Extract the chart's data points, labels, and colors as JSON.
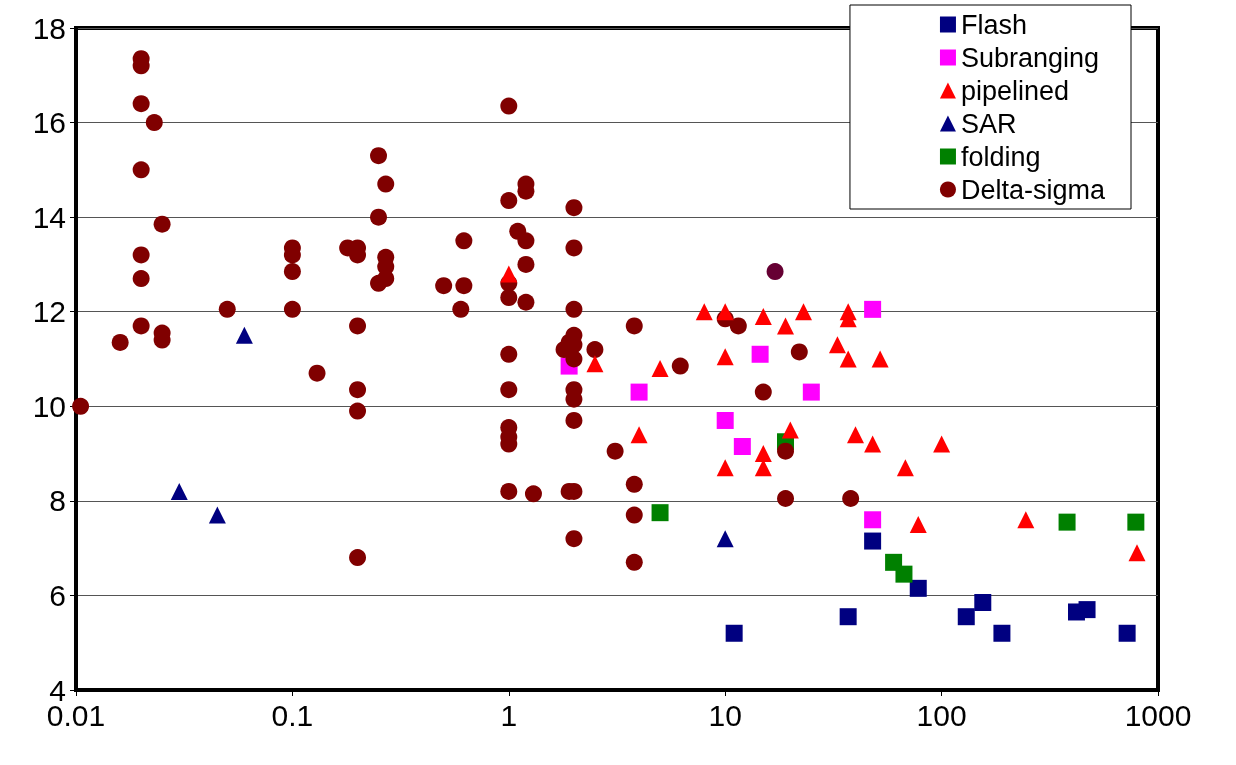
{
  "chart_data": {
    "type": "scatter",
    "log": "x",
    "xlim": [
      0.01,
      1000
    ],
    "xticks": [
      0.01,
      0.1,
      1,
      10,
      100,
      1000
    ],
    "ylim": [
      4,
      18
    ],
    "yticks": [
      4,
      6,
      8,
      10,
      12,
      14,
      16,
      18
    ],
    "grid": "y",
    "legend": "top right",
    "series": [
      {
        "name": "Flash",
        "color": "#000080",
        "marker": "square",
        "x": [
          11,
          37,
          48,
          78,
          130,
          155,
          190,
          420,
          470,
          720
        ],
        "values": [
          5.2,
          5.55,
          7.15,
          6.15,
          5.55,
          5.85,
          5.2,
          5.65,
          5.7,
          5.2
        ]
      },
      {
        "name": "Subranging",
        "color": "#ff00ff",
        "marker": "square",
        "x": [
          1.9,
          4,
          10,
          12,
          14.5,
          25,
          48,
          48
        ],
        "values": [
          10.85,
          10.3,
          9.7,
          9.15,
          11.1,
          10.3,
          12.05,
          7.6
        ]
      },
      {
        "name": "pipelined",
        "color": "#ff0000",
        "marker": "triangle",
        "x": [
          1,
          2.5,
          4,
          5,
          8,
          10,
          10,
          10,
          15,
          15,
          15,
          19,
          20,
          23,
          33,
          37,
          37,
          37,
          40,
          48,
          52,
          68,
          78,
          100,
          245,
          800
        ],
        "values": [
          12.8,
          10.9,
          9.4,
          10.8,
          12.0,
          12.0,
          11.05,
          8.7,
          11.9,
          9.0,
          8.7,
          11.7,
          9.5,
          12.0,
          11.3,
          12.0,
          11.85,
          11.0,
          9.4,
          9.2,
          11.0,
          8.7,
          7.5,
          9.2,
          7.6,
          6.9
        ]
      },
      {
        "name": "SAR",
        "color": "#000080",
        "marker": "triangle",
        "x": [
          0.03,
          0.045,
          0.06,
          10
        ],
        "values": [
          8.2,
          7.7,
          11.5,
          7.2
        ]
      },
      {
        "name": "folding",
        "color": "#008000",
        "marker": "square",
        "x": [
          5,
          19,
          60,
          67,
          380,
          790
        ],
        "values": [
          7.75,
          9.25,
          6.7,
          6.45,
          7.55,
          7.55
        ]
      },
      {
        "name": "Delta-sigma",
        "color": "#800000",
        "marker": "circle",
        "x": [
          0.0105,
          0.016,
          0.02,
          0.02,
          0.02,
          0.02,
          0.02,
          0.02,
          0.02,
          0.023,
          0.025,
          0.025,
          0.025,
          0.05,
          0.1,
          0.1,
          0.1,
          0.1,
          0.13,
          0.18,
          0.2,
          0.2,
          0.2,
          0.2,
          0.2,
          0.2,
          0.25,
          0.25,
          0.25,
          0.27,
          0.27,
          0.27,
          0.27,
          0.5,
          0.6,
          0.62,
          0.62,
          1,
          1,
          1,
          1,
          1,
          1,
          1,
          1,
          1,
          1,
          1.1,
          1.2,
          1.2,
          1.2,
          1.2,
          1.2,
          1.3,
          1.8,
          1.9,
          2,
          2,
          2,
          2,
          2,
          2,
          2,
          2,
          2,
          1.9,
          2,
          2,
          2.5,
          3.1,
          3.8,
          3.8,
          3.8,
          3.8,
          6.2,
          10,
          11.5,
          15,
          19,
          19,
          22,
          38
        ],
        "values": [
          10.0,
          11.35,
          17.35,
          17.2,
          16.4,
          15.0,
          13.2,
          12.7,
          11.7,
          16.0,
          13.85,
          11.55,
          11.4,
          12.05,
          13.35,
          13.2,
          12.85,
          12.05,
          10.7,
          13.35,
          13.35,
          13.2,
          11.7,
          10.35,
          9.9,
          6.8,
          15.3,
          14.0,
          12.6,
          14.7,
          13.15,
          12.95,
          12.7,
          12.55,
          12.05,
          13.5,
          12.55,
          16.35,
          14.35,
          12.6,
          12.3,
          11.1,
          10.35,
          9.55,
          9.35,
          9.2,
          8.2,
          13.7,
          14.7,
          14.55,
          13.5,
          13.0,
          12.2,
          8.15,
          11.2,
          11.35,
          14.2,
          13.35,
          12.05,
          11.5,
          11.3,
          11.0,
          10.35,
          10.15,
          9.7,
          8.2,
          8.2,
          7.2,
          11.2,
          9.05,
          11.7,
          8.35,
          7.7,
          6.7,
          10.85,
          11.85,
          11.7,
          10.3,
          9.05,
          8.05,
          11.15,
          8.05
        ]
      },
      {
        "color": "#660033",
        "marker": "circle",
        "x": [
          17
        ],
        "values": [
          12.85
        ]
      }
    ]
  }
}
